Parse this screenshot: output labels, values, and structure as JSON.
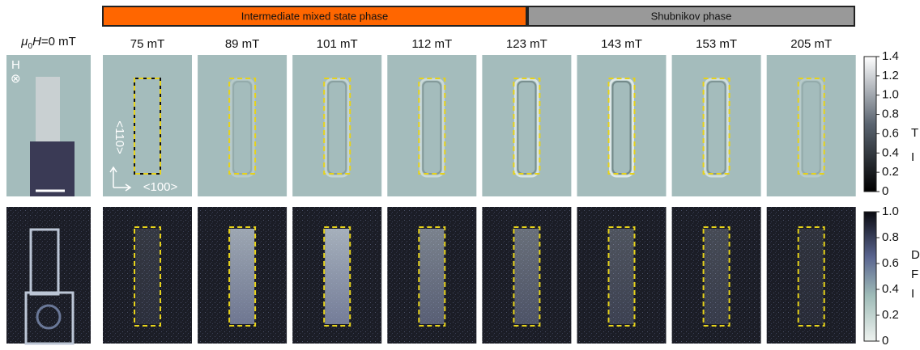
{
  "phases": [
    {
      "label": "Intermediate mixed state phase",
      "color": "#ff6600"
    },
    {
      "label": "Shubnikov  phase",
      "color": "#999999"
    }
  ],
  "first_label": [
    "μ",
    "0",
    "H",
    "=0 mT"
  ],
  "columns": [
    "75 mT",
    "89 mT",
    "101 mT",
    "112 mT",
    "123 mT",
    "143 mT",
    "153 mT",
    "205 mT"
  ],
  "annotations": {
    "field": "H",
    "field_symbol": "⊗",
    "axis_vertical": "<110>",
    "axis_horizontal": "<100>"
  },
  "colorbars": [
    {
      "range": [
        0,
        1.4
      ],
      "ticks": [
        0,
        0.2,
        0.4,
        0.6,
        0.8,
        {
          "value": 1,
          "label": "1.0"
        },
        1.2,
        1.4
      ],
      "labels": [
        "T",
        "I"
      ]
    },
    {
      "range": [
        0,
        1
      ],
      "ticks": [
        0,
        0.2,
        0.4,
        0.6,
        0.8,
        {
          "value": 1,
          "label": "1.0"
        }
      ],
      "labels": [
        "D",
        "F",
        "I"
      ]
    }
  ]
}
